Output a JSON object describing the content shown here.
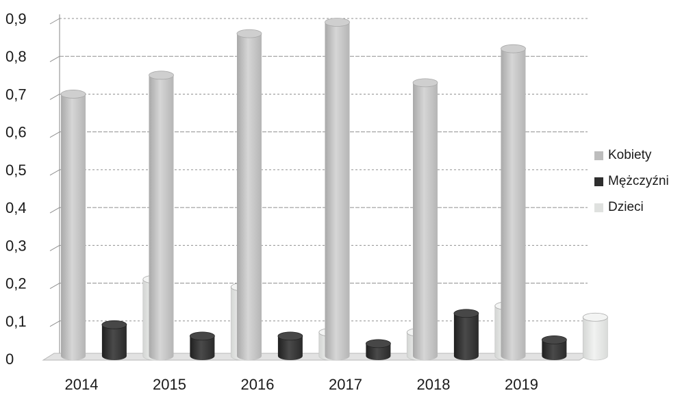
{
  "chart_data": {
    "type": "bar",
    "categories": [
      "2014",
      "2015",
      "2016",
      "2017",
      "2018",
      "2019"
    ],
    "series": [
      {
        "name": "Kobiety",
        "values": [
          0.7,
          0.75,
          0.86,
          0.89,
          0.73,
          0.82
        ]
      },
      {
        "name": "Mężczyźni",
        "values": [
          0.09,
          0.06,
          0.06,
          0.04,
          0.12,
          0.05
        ]
      },
      {
        "name": "Dzieci",
        "values": [
          0.21,
          0.19,
          0.07,
          0.07,
          0.14,
          0.11
        ]
      }
    ],
    "yticks": [
      "0",
      "0,1",
      "0,2",
      "0,3",
      "0,4",
      "0,5",
      "0,6",
      "0,7",
      "0,8",
      "0,9"
    ],
    "ylim": [
      0,
      0.9
    ],
    "grid": true,
    "legend_position": "right",
    "style": "3d-cylinder",
    "colors": {
      "Kobiety": "#c9c9c9",
      "Mężczyźni": "#3a3a3a",
      "Dzieci": "#e6e8e6"
    }
  }
}
